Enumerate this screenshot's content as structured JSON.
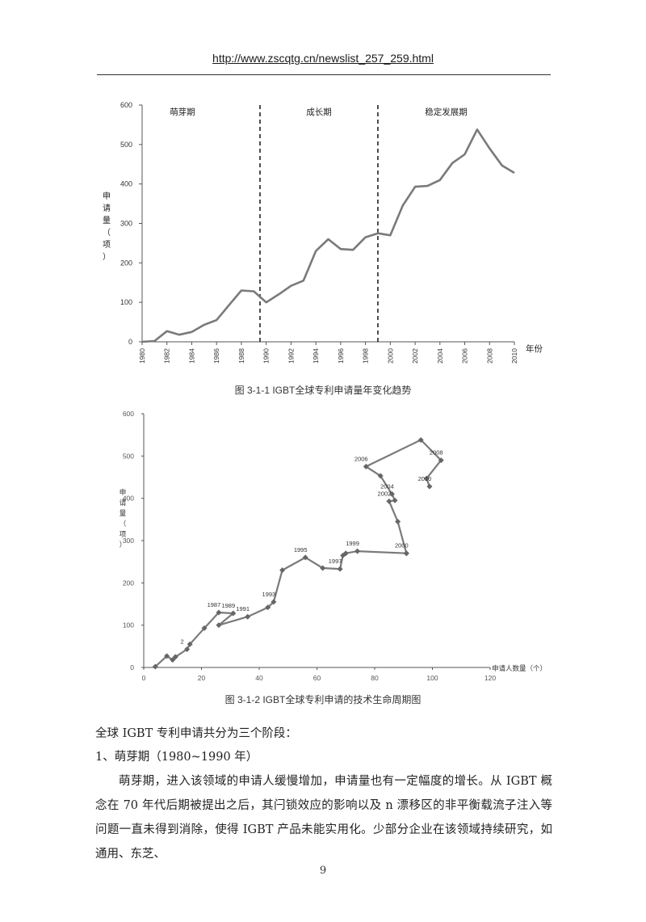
{
  "header": {
    "url": "http://www.zscqtg.cn/newslist_257_259.html"
  },
  "figure1": {
    "caption": "图 3-1-1 IGBT全球专利申请量年变化趋势",
    "ylabel": "申请量（项）",
    "xlabel": "年份",
    "phases": [
      "萌芽期",
      "成长期",
      "稳定发展期"
    ],
    "chart_data": {
      "type": "line",
      "x": [
        1980,
        1981,
        1982,
        1983,
        1984,
        1985,
        1986,
        1987,
        1988,
        1989,
        1990,
        1991,
        1992,
        1993,
        1994,
        1995,
        1996,
        1997,
        1998,
        1999,
        2000,
        2001,
        2002,
        2003,
        2004,
        2005,
        2006,
        2007,
        2008,
        2009,
        2010
      ],
      "values": [
        0,
        2,
        27,
        18,
        25,
        43,
        55,
        93,
        130,
        128,
        100,
        120,
        142,
        155,
        230,
        260,
        235,
        233,
        265,
        275,
        270,
        345,
        393,
        395,
        410,
        453,
        475,
        538,
        490,
        447,
        428
      ],
      "ylabel": "申请量（项）",
      "xlabel": "年份",
      "ylim": [
        0,
        600
      ],
      "yticks": [
        0,
        100,
        200,
        300,
        400,
        500,
        600
      ],
      "xticks": [
        1980,
        1982,
        1984,
        1986,
        1988,
        1990,
        1992,
        1994,
        1996,
        1998,
        2000,
        2002,
        2004,
        2006,
        2008,
        2010
      ],
      "phase_boundaries": [
        1989.5,
        1999
      ],
      "grid": false
    }
  },
  "figure2": {
    "caption": "图 3-1-2 IGBT全球专利申请的技术生命周期图",
    "ylabel": "申请量（项）",
    "xlabel": "申请人数量（个）",
    "chart_data": {
      "type": "scatter",
      "xlim": [
        0,
        120
      ],
      "ylim": [
        0,
        600
      ],
      "xticks": [
        0,
        20,
        40,
        60,
        80,
        100,
        120
      ],
      "yticks": [
        0,
        100,
        200,
        300,
        400,
        500,
        600
      ],
      "x": [
        4,
        8,
        10,
        11,
        15,
        16,
        21,
        26,
        31,
        26,
        36,
        43,
        45,
        48,
        56,
        62,
        68,
        69,
        70,
        74,
        91,
        91,
        88,
        85,
        87,
        86,
        82,
        77,
        96,
        103,
        98,
        99
      ],
      "y": [
        2,
        27,
        18,
        25,
        43,
        55,
        93,
        130,
        128,
        100,
        120,
        142,
        155,
        230,
        260,
        235,
        233,
        265,
        270,
        275,
        270,
        270,
        345,
        393,
        395,
        410,
        453,
        475,
        538,
        490,
        447,
        428
      ],
      "labels": [
        {
          "i": 4,
          "text": "2"
        },
        {
          "i": 7,
          "text": "1987"
        },
        {
          "i": 8,
          "text": "1989"
        },
        {
          "i": 10,
          "text": "1991"
        },
        {
          "i": 12,
          "text": "1993"
        },
        {
          "i": 14,
          "text": "1995"
        },
        {
          "i": 16,
          "text": "1997"
        },
        {
          "i": 19,
          "text": "1999"
        },
        {
          "i": 20,
          "text": "2000"
        },
        {
          "i": 23,
          "text": "2002"
        },
        {
          "i": 25,
          "text": "2004"
        },
        {
          "i": 27,
          "text": "2006"
        },
        {
          "i": 29,
          "text": "2008"
        },
        {
          "i": 31,
          "text": "2010"
        }
      ],
      "grid": false
    }
  },
  "body": {
    "intro": "全球 IGBT 专利申请共分为三个阶段：",
    "section1": "1、萌芽期（1980~1990 年）",
    "para": "萌芽期，进入该领域的申请人缓慢增加，申请量也有一定幅度的增长。从 IGBT 概念在 70 年代后期被提出之后，其闩锁效应的影响以及 n 漂移区的非平衡载流子注入等问题一直未得到消除，使得 IGBT 产品未能实用化。少部分企业在该领域持续研究，如通用、东芝、"
  },
  "page_number": "9",
  "colors": {
    "line": "#7a7a7a",
    "text": "#222222"
  }
}
